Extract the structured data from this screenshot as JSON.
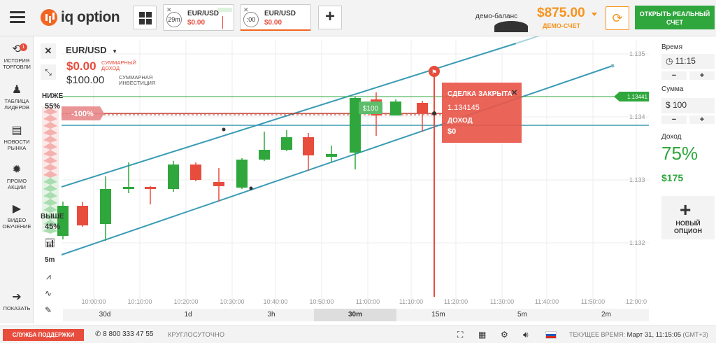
{
  "topbar": {
    "logo_text": "iq option",
    "tabs": [
      {
        "timer": "29m",
        "asset": "EUR/USD",
        "profit": "$0.00",
        "close": "✕"
      },
      {
        "timer": ":00",
        "asset": "EUR/USD",
        "profit": "$0.00",
        "close": "✕"
      }
    ],
    "add_tab": "+",
    "demo_label": "демо-баланс",
    "balance": "$875.00",
    "account_type": "ДЕМО-СЧЕТ",
    "open_account": "ОТКРЫТЬ РЕАЛЬНЫЙ СЧЕТ"
  },
  "sidebar": {
    "items": [
      {
        "label": "ИСТОРИЯ ТОРГОВЛИ",
        "icon": "history-icon",
        "badge": "1"
      },
      {
        "label": "ТАБЛИЦА ЛИДЕРОВ",
        "icon": "leaders-icon"
      },
      {
        "label": "НОВОСТИ РЫНКА",
        "icon": "news-icon"
      },
      {
        "label": "ПРОМО АКЦИИ",
        "icon": "promo-icon"
      },
      {
        "label": "ВИДЕО ОБУЧЕНИЕ",
        "icon": "video-icon"
      },
      {
        "label": "ПОКАЗАТЬ",
        "icon": "show-icon"
      }
    ]
  },
  "asset_panel": {
    "asset": "EUR/USD",
    "profit": "$0.00",
    "profit_label": "СУММАРНЫЙ ДОХОД",
    "investment": "$100.00",
    "investment_label": "СУММАРНАЯ ИНВЕСТИЦИЯ"
  },
  "sentiment": {
    "lower_label": "НИЖЕ",
    "lower_pct": "55%",
    "higher_label": "ВЫШЕ",
    "higher_pct": "45%",
    "deal_pct": "100%"
  },
  "tools": {
    "timeframe": "5m"
  },
  "chart": {
    "price_labels": [
      "1.135",
      "1.134",
      "1.133",
      "1.132"
    ],
    "current_price": "1.13441",
    "time_labels": [
      "10:00:00",
      "10:10:00",
      "10:20:00",
      "10:30:00",
      "10:40:00",
      "10:50:00",
      "11:00:00",
      "11:10:00",
      "11:20:00",
      "11:30:00",
      "11:40:00",
      "11:50:00",
      "12:00:0"
    ],
    "deal_tag": "$100",
    "popup": {
      "title": "СДЕЛКА ЗАКРЫТА",
      "price": "1.134145",
      "income_label": "ДОХОД",
      "income": "$0",
      "close": "✕"
    }
  },
  "periods": [
    "30d",
    "1d",
    "3h",
    "30m",
    "15m",
    "5m",
    "2m"
  ],
  "active_period": "30m",
  "right_panel": {
    "time_label": "Время",
    "time_value": "11:15",
    "amount_label": "Сумма",
    "amount_value": "$ 100",
    "income_label": "Доход",
    "income_pct": "75%",
    "income_value": "$175",
    "new_option": "НОВЫЙ ОПЦИОН",
    "minus": "−",
    "plus": "+"
  },
  "bottombar": {
    "support": "СЛУЖБА ПОДДЕРЖКИ",
    "phone": "8 800 333 47 55",
    "hours": "КРУГЛОСУТОЧНО",
    "time_label": "ТЕКУЩЕЕ ВРЕМЯ:",
    "time_value": "Март 31, 11:15:05",
    "timezone": "(GMT+3)"
  },
  "colors": {
    "green": "#2fa73d",
    "red": "#e74c3c",
    "orange": "#f7931e",
    "channel": "#3a9bb5"
  }
}
